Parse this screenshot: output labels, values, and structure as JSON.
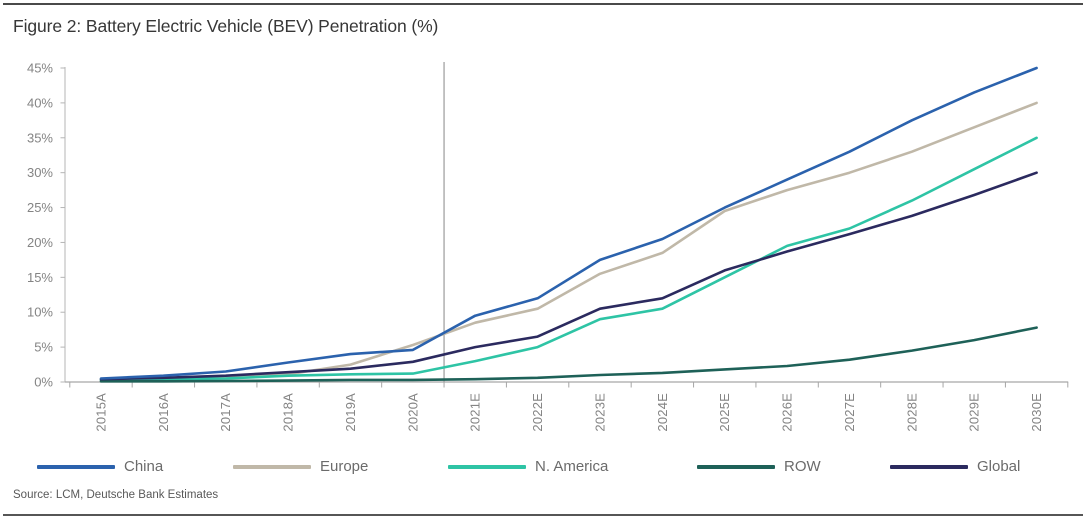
{
  "figure": {
    "title": "Figure 2: Battery Electric Vehicle (BEV) Penetration (%)",
    "source": "Source: LCM, Deutsche Bank Estimates"
  },
  "chart_data": {
    "type": "line",
    "title": "Figure 2: Battery Electric Vehicle (BEV) Penetration (%)",
    "categories": [
      "2015A",
      "2016A",
      "2017A",
      "2018A",
      "2019A",
      "2020A",
      "2021E",
      "2022E",
      "2023E",
      "2024E",
      "2025E",
      "2026E",
      "2027E",
      "2028E",
      "2029E",
      "2030E"
    ],
    "series": [
      {
        "name": "China",
        "color": "#2b62ad",
        "values": [
          0.5,
          0.9,
          1.5,
          2.8,
          4.0,
          4.6,
          9.5,
          12.0,
          17.5,
          20.5,
          25.0,
          29.0,
          33.0,
          37.5,
          41.5,
          45.0
        ]
      },
      {
        "name": "Europe",
        "color": "#c0b8a8",
        "values": [
          0.2,
          0.4,
          0.7,
          1.1,
          2.5,
          5.3,
          8.5,
          10.5,
          15.5,
          18.5,
          24.5,
          27.5,
          30.0,
          33.0,
          36.5,
          40.0
        ]
      },
      {
        "name": "N. America",
        "color": "#2ec4a5",
        "values": [
          0.3,
          0.4,
          0.5,
          0.9,
          1.1,
          1.2,
          3.0,
          5.0,
          9.0,
          10.5,
          15.0,
          19.5,
          22.0,
          26.0,
          30.5,
          35.0
        ]
      },
      {
        "name": "ROW",
        "color": "#1e6158",
        "values": [
          0.1,
          0.1,
          0.15,
          0.2,
          0.3,
          0.3,
          0.4,
          0.6,
          1.0,
          1.3,
          1.8,
          2.3,
          3.2,
          4.5,
          6.0,
          7.8
        ]
      },
      {
        "name": "Global",
        "color": "#2b2a5f",
        "values": [
          0.4,
          0.6,
          0.9,
          1.4,
          1.9,
          2.9,
          5.0,
          6.5,
          10.5,
          12.0,
          16.0,
          18.7,
          21.2,
          23.8,
          26.8,
          30.0
        ]
      }
    ],
    "xlabel": "",
    "ylabel": "",
    "ylim": [
      0,
      45
    ],
    "y_tick_step": 5,
    "y_tick_suffix": "%",
    "divider_after_category": "2020A",
    "legend_position": "bottom",
    "grid": false
  }
}
